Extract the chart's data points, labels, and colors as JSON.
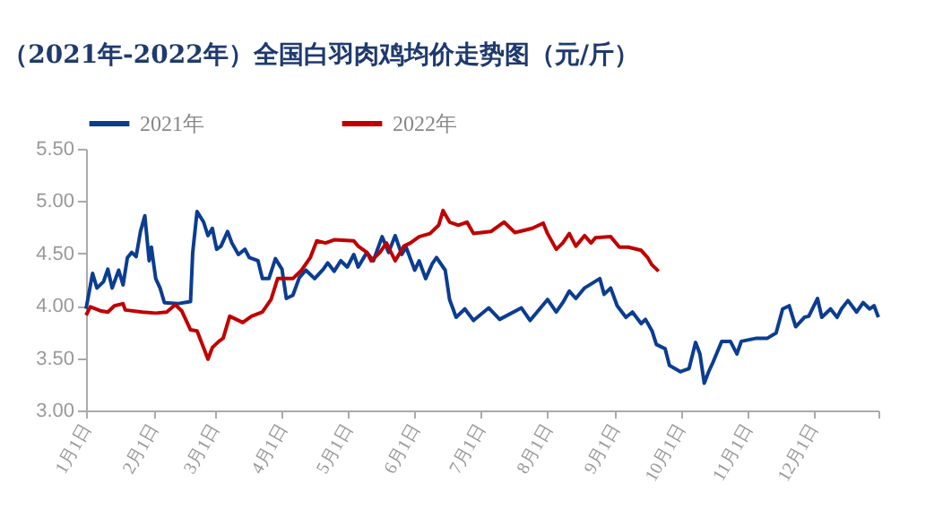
{
  "chart_data": {
    "type": "line",
    "title": "（2021年-2022年）全国白羽肉鸡均价走势图（元/斤）",
    "xlim": [
      "--01-01",
      "--12-31"
    ],
    "xticks": [
      {
        "value": "--01-01",
        "label": "1月1日"
      },
      {
        "value": "--02-01",
        "label": "2月1日"
      },
      {
        "value": "--03-01",
        "label": "3月1日"
      },
      {
        "value": "--04-01",
        "label": "4月1日"
      },
      {
        "value": "--05-01",
        "label": "5月1日"
      },
      {
        "value": "--06-01",
        "label": "6月1日"
      },
      {
        "value": "--07-01",
        "label": "7月1日"
      },
      {
        "value": "--08-01",
        "label": "8月1日"
      },
      {
        "value": "--09-01",
        "label": "9月1日"
      },
      {
        "value": "--10-01",
        "label": "10月1日"
      },
      {
        "value": "--11-01",
        "label": "11月1日"
      },
      {
        "value": "--12-01",
        "label": "12月1日"
      },
      {
        "value": "--12-31",
        "label": null
      }
    ],
    "ylim": [
      3,
      5.5
    ],
    "yticks": [
      {
        "value": 3,
        "label": "3.00"
      },
      {
        "value": 3.5,
        "label": "3.50"
      },
      {
        "value": 4,
        "label": "4.00"
      },
      {
        "value": 4.5,
        "label": "4.50"
      },
      {
        "value": 5,
        "label": "5.00"
      },
      {
        "value": 5.5,
        "label": "5.50"
      }
    ],
    "legend": "top",
    "marker": "none",
    "line_style": "solid",
    "series": [
      {
        "name": "2021年",
        "color": "#0b3d91",
        "x": [
          "--01-01",
          "--01-04",
          "--01-06",
          "--01-09",
          "--01-11",
          "--01-13",
          "--01-16",
          "--01-18",
          "--01-20",
          "--01-22",
          "--01-24",
          "--01-26",
          "--01-28",
          "--01-30",
          "--01-31",
          "--02-02",
          "--02-04",
          "--02-06",
          "--02-12",
          "--02-18",
          "--02-19",
          "--02-21",
          "--02-24",
          "--02-26",
          "--02-28",
          "--03-02",
          "--03-04",
          "--03-07",
          "--03-09",
          "--03-12",
          "--03-15",
          "--03-17",
          "--03-21",
          "--03-23",
          "--03-26",
          "--03-29",
          "--04-01",
          "--04-03",
          "--04-06",
          "--04-09",
          "--04-12",
          "--04-16",
          "--04-20",
          "--04-22",
          "--04-25",
          "--04-28",
          "--05-01",
          "--05-04",
          "--05-06",
          "--05-10",
          "--05-13",
          "--05-17",
          "--05-20",
          "--05-23",
          "--05-26",
          "--05-28",
          "--06-01",
          "--06-03",
          "--06-06",
          "--06-09",
          "--06-11",
          "--06-15",
          "--06-17",
          "--06-20",
          "--06-24",
          "--06-28",
          "--07-05",
          "--07-10",
          "--07-20",
          "--07-24",
          "--08-01",
          "--08-05",
          "--08-08",
          "--08-11",
          "--08-14",
          "--08-18",
          "--08-25",
          "--08-27",
          "--08-30",
          "--09-02",
          "--09-06",
          "--09-09",
          "--09-13",
          "--09-15",
          "--09-18",
          "--09-20",
          "--09-24",
          "--09-26",
          "--10-01",
          "--10-05",
          "--10-08",
          "--10-10",
          "--10-12",
          "--10-14",
          "--10-16",
          "--10-20",
          "--10-24",
          "--10-27",
          "--10-29",
          "--11-05",
          "--11-10",
          "--11-14",
          "--11-17",
          "--11-20",
          "--11-23",
          "--11-27",
          "--11-29",
          "--12-03",
          "--12-05",
          "--12-09",
          "--12-12",
          "--12-14",
          "--12-17",
          "--12-21",
          "--12-24",
          "--12-27",
          "--12-29",
          "--12-31"
        ],
        "values": [
          3.97,
          4.31,
          4.17,
          4.23,
          4.35,
          4.17,
          4.34,
          4.2,
          4.46,
          4.51,
          4.47,
          4.71,
          4.86,
          4.43,
          4.56,
          4.26,
          4.17,
          4.03,
          4.02,
          4.04,
          4.51,
          4.9,
          4.8,
          4.67,
          4.74,
          4.54,
          4.57,
          4.71,
          4.6,
          4.49,
          4.54,
          4.46,
          4.43,
          4.26,
          4.26,
          4.45,
          4.35,
          4.07,
          4.1,
          4.27,
          4.34,
          4.26,
          4.35,
          4.41,
          4.33,
          4.43,
          4.37,
          4.49,
          4.37,
          4.51,
          4.43,
          4.66,
          4.51,
          4.67,
          4.49,
          4.56,
          4.34,
          4.43,
          4.26,
          4.4,
          4.46,
          4.34,
          4.06,
          3.89,
          3.97,
          3.86,
          3.98,
          3.87,
          3.98,
          3.86,
          4.06,
          3.94,
          4.03,
          4.14,
          4.07,
          4.17,
          4.26,
          4.11,
          4.17,
          4.0,
          3.89,
          3.94,
          3.83,
          3.87,
          3.76,
          3.63,
          3.59,
          3.43,
          3.37,
          3.4,
          3.65,
          3.54,
          3.26,
          3.37,
          3.46,
          3.66,
          3.66,
          3.54,
          3.66,
          3.69,
          3.69,
          3.74,
          3.97,
          4.0,
          3.8,
          3.89,
          3.9,
          4.07,
          3.89,
          3.97,
          3.89,
          3.97,
          4.05,
          3.94,
          4.03,
          3.97,
          4.0,
          3.89
        ]
      },
      {
        "name": "2022年",
        "color": "#c00000",
        "x": [
          "--01-01",
          "--01-03",
          "--01-08",
          "--01-11",
          "--01-14",
          "--01-18",
          "--01-19",
          "--01-27",
          "--02-02",
          "--02-07",
          "--02-11",
          "--02-14",
          "--02-18",
          "--02-21",
          "--02-24",
          "--02-26",
          "--02-28",
          "--03-03",
          "--03-05",
          "--03-08",
          "--03-11",
          "--03-14",
          "--03-18",
          "--03-23",
          "--03-27",
          "--03-30",
          "--04-03",
          "--04-06",
          "--04-10",
          "--04-14",
          "--04-17",
          "--04-21",
          "--04-25",
          "--05-04",
          "--05-06",
          "--05-10",
          "--05-12",
          "--05-16",
          "--05-19",
          "--05-23",
          "--05-27",
          "--05-30",
          "--06-03",
          "--06-08",
          "--06-12",
          "--06-14",
          "--06-17",
          "--06-21",
          "--06-25",
          "--06-28",
          "--07-06",
          "--07-12",
          "--07-17",
          "--07-25",
          "--07-30",
          "--08-01",
          "--08-05",
          "--08-08",
          "--08-11",
          "--08-14",
          "--08-18",
          "--08-21",
          "--08-23",
          "--08-30",
          "--09-03",
          "--09-07",
          "--09-13",
          "--09-16",
          "--09-18",
          "--09-21"
        ],
        "values": [
          3.91,
          3.99,
          3.95,
          3.94,
          4.0,
          4.02,
          3.96,
          3.94,
          3.93,
          3.94,
          4.01,
          3.95,
          3.77,
          3.76,
          3.6,
          3.49,
          3.6,
          3.66,
          3.69,
          3.9,
          3.87,
          3.84,
          3.9,
          3.94,
          4.06,
          4.26,
          4.26,
          4.26,
          4.34,
          4.46,
          4.62,
          4.6,
          4.63,
          4.62,
          4.57,
          4.51,
          4.43,
          4.51,
          4.6,
          4.43,
          4.57,
          4.6,
          4.66,
          4.69,
          4.77,
          4.91,
          4.8,
          4.77,
          4.8,
          4.69,
          4.71,
          4.8,
          4.7,
          4.74,
          4.79,
          4.69,
          4.54,
          4.6,
          4.69,
          4.57,
          4.67,
          4.6,
          4.65,
          4.66,
          4.56,
          4.56,
          4.53,
          4.46,
          4.39,
          4.33
        ]
      }
    ]
  }
}
